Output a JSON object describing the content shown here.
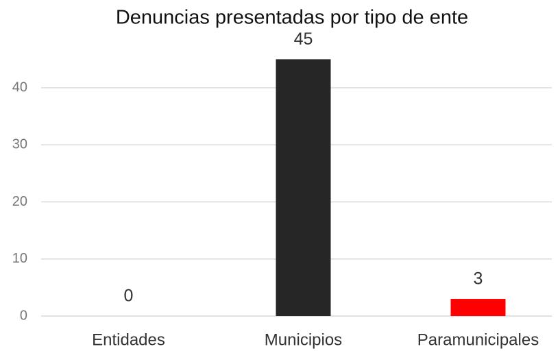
{
  "chart_data": {
    "type": "bar",
    "title": "Denuncias presentadas por tipo de ente",
    "categories": [
      "Entidades",
      "Municipios",
      "Paramunicipales"
    ],
    "values": [
      0,
      45,
      3
    ],
    "colors": [
      "#262626",
      "#262626",
      "#ff0000"
    ],
    "ylim": [
      0,
      45
    ],
    "yticks": [
      0,
      10,
      20,
      30,
      40
    ],
    "grid": true
  }
}
